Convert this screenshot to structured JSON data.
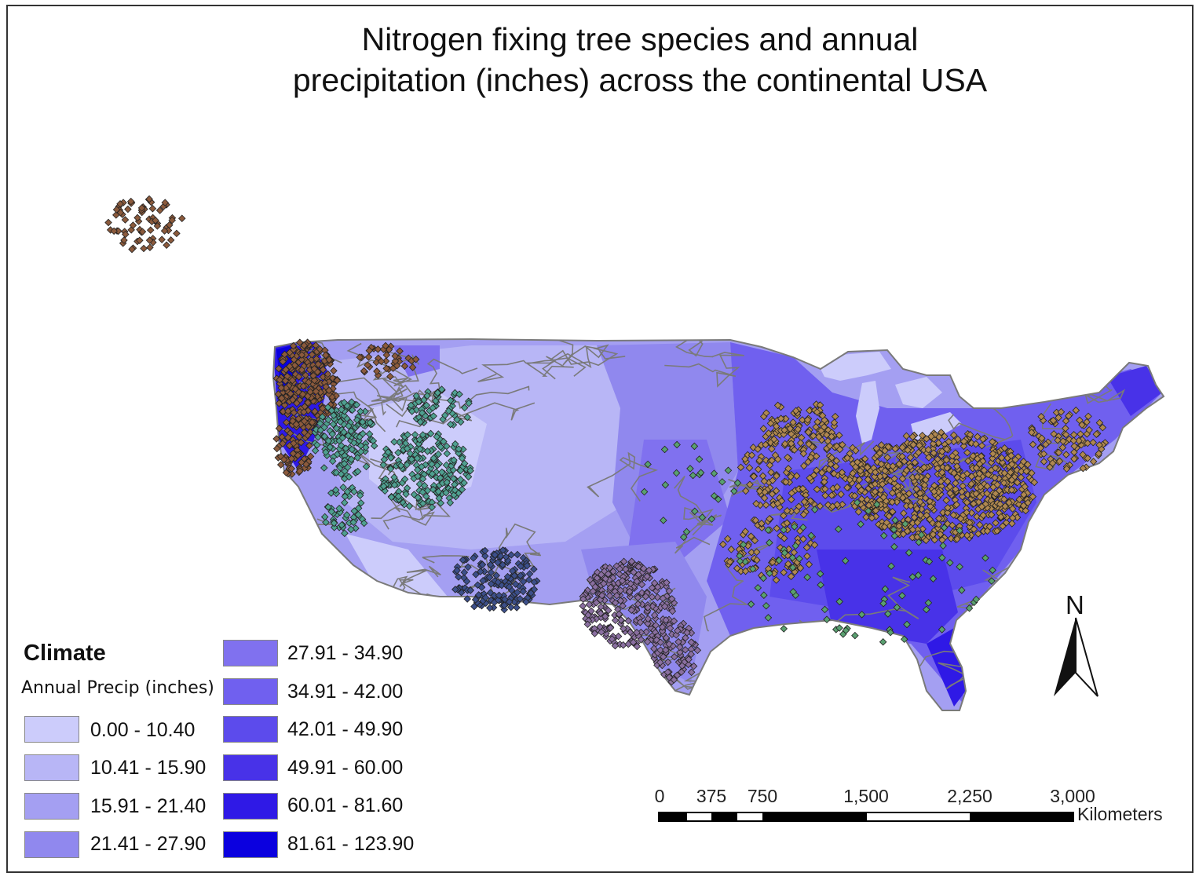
{
  "title_line1": "Nitrogen fixing tree species and annual",
  "title_line2": "precipitation (inches) across the continental USA",
  "legend": {
    "heading": "Climate",
    "subheading": "Annual Precip (inches)",
    "classes": [
      {
        "label": "0.00 - 10.40",
        "color": "#ccccfb"
      },
      {
        "label": "10.41 - 15.90",
        "color": "#b8b6f6"
      },
      {
        "label": "15.91 - 21.40",
        "color": "#a49ff2"
      },
      {
        "label": "21.41 - 27.90",
        "color": "#9088ee"
      },
      {
        "label": "27.91 - 34.90",
        "color": "#8071ef"
      },
      {
        "label": "34.91 - 42.00",
        "color": "#7060ef"
      },
      {
        "label": "42.01 - 49.90",
        "color": "#5c4bec"
      },
      {
        "label": "49.91 - 60.00",
        "color": "#4832e8"
      },
      {
        "label": "60.01 - 81.60",
        "color": "#2f19e6"
      },
      {
        "label": "81.61 - 123.90",
        "color": "#0b00df"
      }
    ]
  },
  "north_arrow": {
    "letter": "N"
  },
  "scale_bar": {
    "ticks": [
      "0",
      "375",
      "750",
      "1,500",
      "2,250",
      "3,000"
    ],
    "tick_values_km": [
      0,
      375,
      750,
      1500,
      2250,
      3000
    ],
    "unit": "Kilometers"
  },
  "species_colors": {
    "pacific_northwest": "#8b5a3c",
    "great_basin": "#4fa090",
    "southwest": "#3c4f8a",
    "texas": "#8a6fa0",
    "eastern": "#b08850",
    "scattered": "#5aa070"
  },
  "outline_color": "#7a7a7a"
}
